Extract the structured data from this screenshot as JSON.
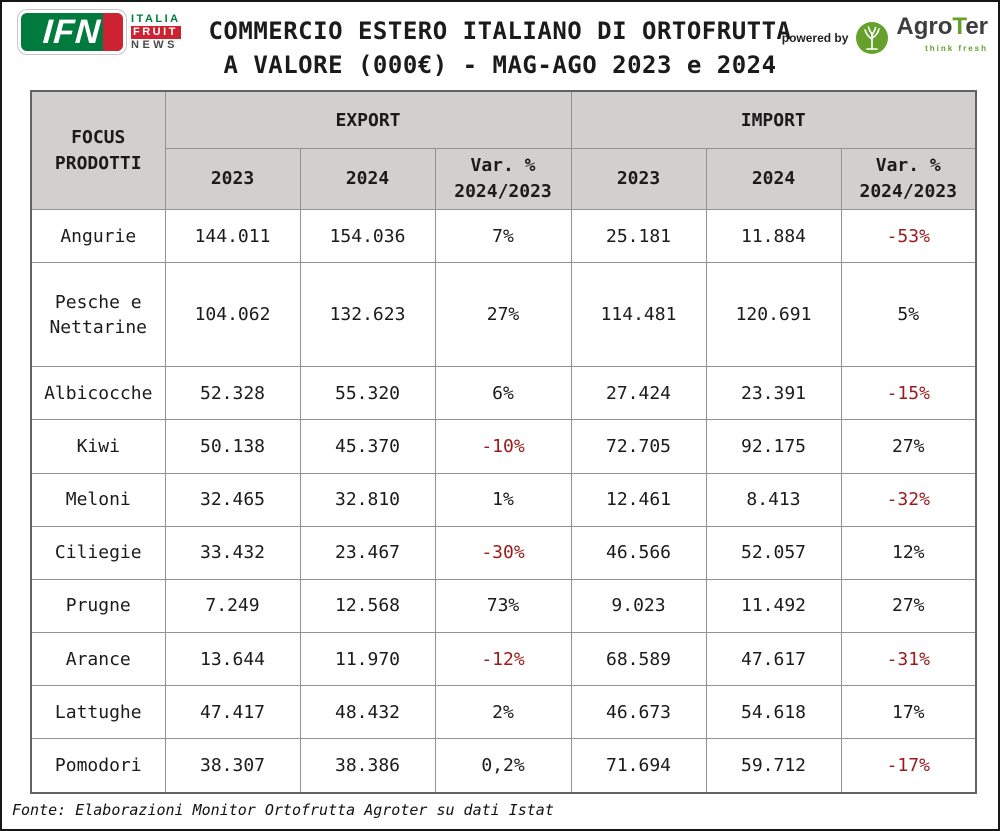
{
  "colors": {
    "negative": "#9b1b1b",
    "header-bg": "#d2cfcf",
    "ifn-green": "#007a3d",
    "ifn-red": "#cd2232",
    "agroter-green": "#64a12d",
    "text": "#1b1b1b"
  },
  "header": {
    "logo_ifn": {
      "abbr": "IFN",
      "line1": "ITALIA",
      "line2": "FRUIT",
      "line3": "NEWS"
    },
    "title_line1": "COMMERCIO ESTERO ITALIANO DI ORTOFRUTTA",
    "title_line2": "A VALORE (000€) - MAG-AGO 2023 e 2024",
    "powered_by": "powered by",
    "agroter": {
      "name_prefix": "Agro",
      "name_t": "T",
      "name_suffix": "er",
      "tagline": "think fresh"
    }
  },
  "table": {
    "corner_header": "FOCUS\nPRODOTTI",
    "group_headers": [
      "EXPORT",
      "IMPORT"
    ],
    "sub_headers": [
      "2023",
      "2024",
      "Var. %\n2024/2023"
    ],
    "rows": [
      {
        "product": "Angurie",
        "export_2023": "144.011",
        "export_2024": "154.036",
        "export_var": "7%",
        "import_2023": "25.181",
        "import_2024": "11.884",
        "import_var": "-53%"
      },
      {
        "product": "Pesche e\nNettarine",
        "export_2023": "104.062",
        "export_2024": "132.623",
        "export_var": "27%",
        "import_2023": "114.481",
        "import_2024": "120.691",
        "import_var": "5%"
      },
      {
        "product": "Albicocche",
        "export_2023": "52.328",
        "export_2024": "55.320",
        "export_var": "6%",
        "import_2023": "27.424",
        "import_2024": "23.391",
        "import_var": "-15%"
      },
      {
        "product": "Kiwi",
        "export_2023": "50.138",
        "export_2024": "45.370",
        "export_var": "-10%",
        "import_2023": "72.705",
        "import_2024": "92.175",
        "import_var": "27%"
      },
      {
        "product": "Meloni",
        "export_2023": "32.465",
        "export_2024": "32.810",
        "export_var": "1%",
        "import_2023": "12.461",
        "import_2024": "8.413",
        "import_var": "-32%"
      },
      {
        "product": "Ciliegie",
        "export_2023": "33.432",
        "export_2024": "23.467",
        "export_var": "-30%",
        "import_2023": "46.566",
        "import_2024": "52.057",
        "import_var": "12%"
      },
      {
        "product": "Prugne",
        "export_2023": "7.249",
        "export_2024": "12.568",
        "export_var": "73%",
        "import_2023": "9.023",
        "import_2024": "11.492",
        "import_var": "27%"
      },
      {
        "product": "Arance",
        "export_2023": "13.644",
        "export_2024": "11.970",
        "export_var": "-12%",
        "import_2023": "68.589",
        "import_2024": "47.617",
        "import_var": "-31%"
      },
      {
        "product": "Lattughe",
        "export_2023": "47.417",
        "export_2024": "48.432",
        "export_var": "2%",
        "import_2023": "46.673",
        "import_2024": "54.618",
        "import_var": "17%"
      },
      {
        "product": "Pomodori",
        "export_2023": "38.307",
        "export_2024": "38.386",
        "export_var": "0,2%",
        "import_2023": "71.694",
        "import_2024": "59.712",
        "import_var": "-17%"
      }
    ]
  },
  "footer": {
    "source": "Fonte: Elaborazioni Monitor Ortofrutta Agroter su dati Istat"
  },
  "chart_data": {
    "type": "table",
    "title": "COMMERCIO ESTERO ITALIANO DI ORTOFRUTTA A VALORE (000€) - MAG-AGO 2023 e 2024",
    "columns": [
      "FOCUS PRODOTTI",
      "EXPORT 2023",
      "EXPORT 2024",
      "EXPORT Var. % 2024/2023",
      "IMPORT 2023",
      "IMPORT 2024",
      "IMPORT Var. % 2024/2023"
    ],
    "rows": [
      [
        "Angurie",
        144011,
        154036,
        "7%",
        25181,
        11884,
        "-53%"
      ],
      [
        "Pesche e Nettarine",
        104062,
        132623,
        "27%",
        114481,
        120691,
        "5%"
      ],
      [
        "Albicocche",
        52328,
        55320,
        "6%",
        27424,
        23391,
        "-15%"
      ],
      [
        "Kiwi",
        50138,
        45370,
        "-10%",
        72705,
        92175,
        "27%"
      ],
      [
        "Meloni",
        32465,
        32810,
        "1%",
        12461,
        8413,
        "-32%"
      ],
      [
        "Ciliegie",
        33432,
        23467,
        "-30%",
        46566,
        52057,
        "12%"
      ],
      [
        "Prugne",
        7249,
        12568,
        "73%",
        9023,
        11492,
        "27%"
      ],
      [
        "Arance",
        13644,
        11970,
        "-12%",
        68589,
        47617,
        "-31%"
      ],
      [
        "Lattughe",
        47417,
        48432,
        "2%",
        46673,
        54618,
        "17%"
      ],
      [
        "Pomodori",
        38307,
        38386,
        "0,2%",
        71694,
        59712,
        "-17%"
      ]
    ],
    "source": "Fonte: Elaborazioni Monitor Ortofrutta Agroter su dati Istat"
  }
}
